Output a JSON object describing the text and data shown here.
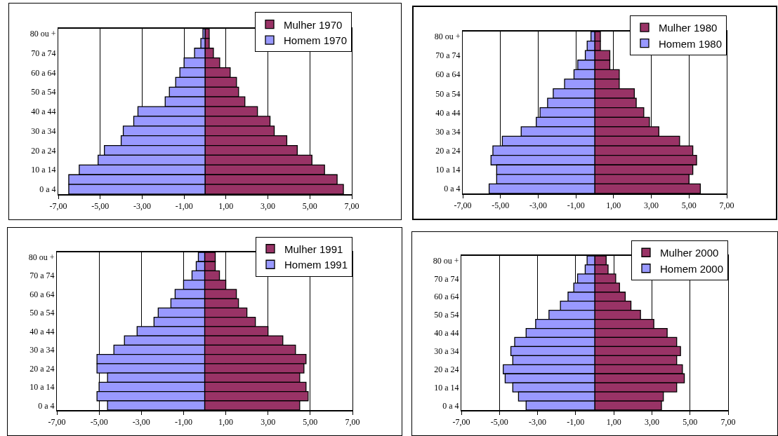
{
  "chart_data": [
    {
      "type": "bar",
      "orientation": "horizontal",
      "stacked": true,
      "categories": [
        "80 ou +",
        null,
        "70 a 74",
        null,
        "60 a 64",
        null,
        "50 a 54",
        null,
        "40 a 44",
        null,
        "30 a 34",
        null,
        "20 a 24",
        null,
        "10 a 14",
        null,
        "0 a 4"
      ],
      "series": [
        {
          "name": "Mulher 1970",
          "color": "#993366",
          "values": [
            0.2,
            0.2,
            0.4,
            0.7,
            1.2,
            1.5,
            1.6,
            1.9,
            2.5,
            3.1,
            3.3,
            3.9,
            4.4,
            5.1,
            5.7,
            6.3,
            6.6
          ]
        },
        {
          "name": "Homem 1970",
          "color": "#9999ff",
          "values": [
            -0.1,
            -0.2,
            -0.5,
            -1.0,
            -1.2,
            -1.4,
            -1.7,
            -1.9,
            -3.2,
            -3.4,
            -3.9,
            -4.0,
            -4.8,
            -5.1,
            -6.0,
            -6.5,
            -6.5
          ]
        }
      ],
      "xlim": [
        -7,
        7
      ],
      "xticks": [
        {
          "value": -7,
          "label": "-7,00"
        },
        {
          "value": -5,
          "label": "-5,00"
        },
        {
          "value": -3,
          "label": "-3,00"
        },
        {
          "value": -1,
          "label": "-1,00"
        },
        {
          "value": 1,
          "label": "1,00"
        },
        {
          "value": 3,
          "label": "3,00"
        },
        {
          "value": 5,
          "label": "5,00"
        },
        {
          "value": 7,
          "label": "7,00"
        }
      ],
      "grid": "x",
      "legend": "top right"
    },
    {
      "type": "bar",
      "orientation": "horizontal",
      "stacked": true,
      "categories": [
        "80 ou +",
        null,
        "70 a 74",
        null,
        "60 a 64",
        null,
        "50 a 54",
        null,
        "40 a 44",
        null,
        "30 a 34",
        null,
        "20 a 24",
        null,
        "10 a 14",
        null,
        "0 a 4"
      ],
      "series": [
        {
          "name": "Mulher 1980",
          "color": "#993366",
          "values": [
            0.3,
            0.3,
            0.8,
            0.8,
            1.3,
            1.3,
            2.1,
            2.2,
            2.6,
            2.9,
            3.4,
            4.5,
            5.2,
            5.4,
            5.2,
            5.0,
            5.6
          ]
        },
        {
          "name": "Homem 1980",
          "color": "#9999ff",
          "values": [
            -0.2,
            -0.4,
            -0.5,
            -0.9,
            -1.1,
            -1.6,
            -2.2,
            -2.5,
            -2.9,
            -3.1,
            -3.9,
            -4.9,
            -5.4,
            -5.5,
            -5.2,
            -5.2,
            -5.6
          ]
        }
      ],
      "xlim": [
        -7,
        7
      ],
      "xticks": [
        {
          "value": -7,
          "label": "-7,00"
        },
        {
          "value": -5,
          "label": "-5,00"
        },
        {
          "value": -3,
          "label": "-3,00"
        },
        {
          "value": -1,
          "label": "-1,00"
        },
        {
          "value": 1,
          "label": "1,00"
        },
        {
          "value": 3,
          "label": "3,00"
        },
        {
          "value": 5,
          "label": "5,00"
        },
        {
          "value": 7,
          "label": "7,00"
        }
      ],
      "grid": "x",
      "legend": "top right"
    },
    {
      "type": "bar",
      "orientation": "horizontal",
      "stacked": true,
      "categories": [
        "80 ou +",
        null,
        "70 a 74",
        null,
        "60 a 64",
        null,
        "50 a 54",
        null,
        "40 a 44",
        null,
        "30 a 34",
        null,
        "20 a 24",
        null,
        "10 a 14",
        null,
        "0 a 4"
      ],
      "series": [
        {
          "name": "Mulher 1991",
          "color": "#993366",
          "values": [
            0.5,
            0.5,
            0.7,
            1.0,
            1.5,
            1.6,
            2.0,
            2.4,
            3.0,
            3.7,
            4.3,
            4.8,
            4.7,
            4.5,
            4.8,
            4.9,
            4.5
          ]
        },
        {
          "name": "Homem 1991",
          "color": "#9999ff",
          "values": [
            -0.3,
            -0.4,
            -0.6,
            -1.0,
            -1.4,
            -1.6,
            -2.2,
            -2.4,
            -3.2,
            -3.8,
            -4.3,
            -5.1,
            -5.1,
            -4.6,
            -5.0,
            -5.1,
            -4.6
          ]
        }
      ],
      "xlim": [
        -7,
        7
      ],
      "xticks": [
        {
          "value": -7,
          "label": "-7,00"
        },
        {
          "value": -5,
          "label": "-5,00"
        },
        {
          "value": -3,
          "label": "-3,00"
        },
        {
          "value": -1,
          "label": "-1,00"
        },
        {
          "value": 1,
          "label": "1,00"
        },
        {
          "value": 3,
          "label": "3,00"
        },
        {
          "value": 5,
          "label": "5,00"
        },
        {
          "value": 7,
          "label": "7,00"
        }
      ],
      "grid": "x",
      "legend": "top right"
    },
    {
      "type": "bar",
      "orientation": "horizontal",
      "stacked": true,
      "categories": [
        "80 ou +",
        null,
        "70 a 74",
        null,
        "60 a 64",
        null,
        "50 a 54",
        null,
        "40 a 44",
        null,
        "30 a 34",
        null,
        "20 a 24",
        null,
        "10 a 14",
        null,
        "0 a 4"
      ],
      "series": [
        {
          "name": "Mulher 2000",
          "color": "#993366",
          "values": [
            0.6,
            0.7,
            1.1,
            1.3,
            1.6,
            1.9,
            2.4,
            3.1,
            3.8,
            4.3,
            4.5,
            4.3,
            4.6,
            4.7,
            4.3,
            3.6,
            3.5
          ]
        },
        {
          "name": "Homem 2000",
          "color": "#9999ff",
          "values": [
            -0.4,
            -0.5,
            -0.9,
            -1.1,
            -1.4,
            -1.8,
            -2.4,
            -3.1,
            -3.6,
            -4.2,
            -4.4,
            -4.3,
            -4.8,
            -4.7,
            -4.3,
            -4.0,
            -3.6
          ]
        }
      ],
      "xlim": [
        -7,
        7
      ],
      "xticks": [
        {
          "value": -7,
          "label": "-7,00"
        },
        {
          "value": -5,
          "label": "-5,00"
        },
        {
          "value": -3,
          "label": "-3,00"
        },
        {
          "value": -1,
          "label": "-1,00"
        },
        {
          "value": 1,
          "label": "1,00"
        },
        {
          "value": 3,
          "label": "3,00"
        },
        {
          "value": 5,
          "label": "5,00"
        },
        {
          "value": 7,
          "label": "7,00"
        }
      ],
      "grid": "x",
      "legend": "top right"
    }
  ]
}
